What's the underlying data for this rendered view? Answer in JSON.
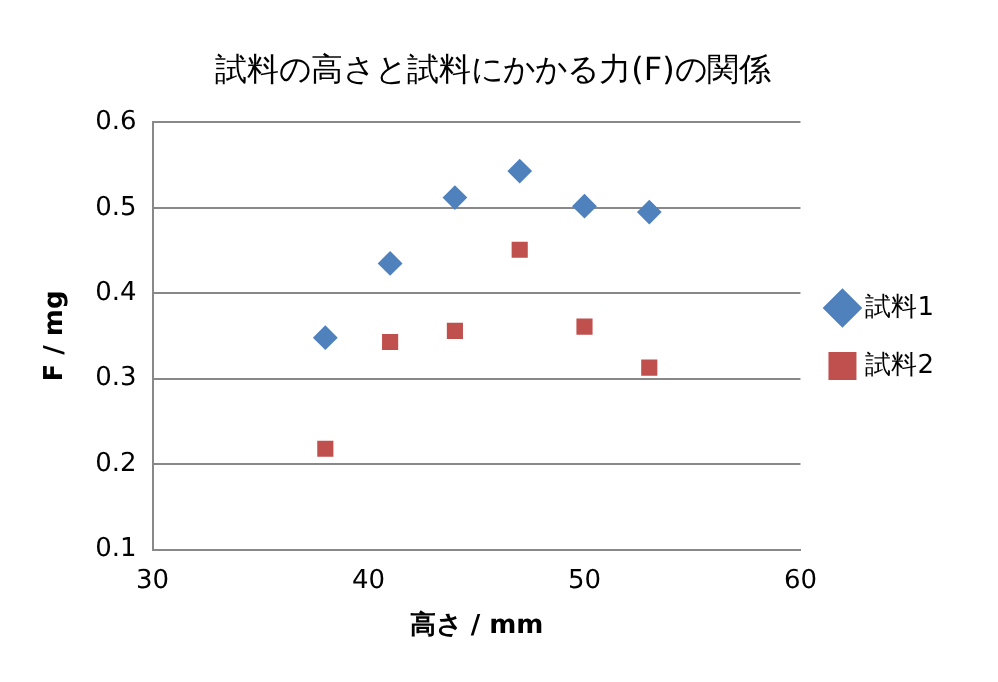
{
  "chart_data": {
    "type": "scatter",
    "title": "試料の高さと試料にかかる力(F)の関係",
    "xlabel": "高さ / mm",
    "ylabel": "F / mg",
    "x": [
      38,
      41,
      44,
      47,
      50,
      53
    ],
    "series": [
      {
        "name": "試料1",
        "color": "#4f81bd",
        "marker": "diamond",
        "values": [
          0.348,
          0.435,
          0.512,
          0.543,
          0.502,
          0.495
        ]
      },
      {
        "name": "試料2",
        "color": "#c0504d",
        "marker": "square",
        "values": [
          0.218,
          0.343,
          0.356,
          0.451,
          0.361,
          0.313
        ]
      }
    ],
    "xlim": [
      30,
      60
    ],
    "xticks": [
      30,
      40,
      50,
      60
    ],
    "ylim": [
      0.1,
      0.6
    ],
    "yticks": [
      0.1,
      0.2,
      0.3,
      0.4,
      0.5,
      0.6
    ],
    "grid": "y",
    "legend": "right"
  }
}
